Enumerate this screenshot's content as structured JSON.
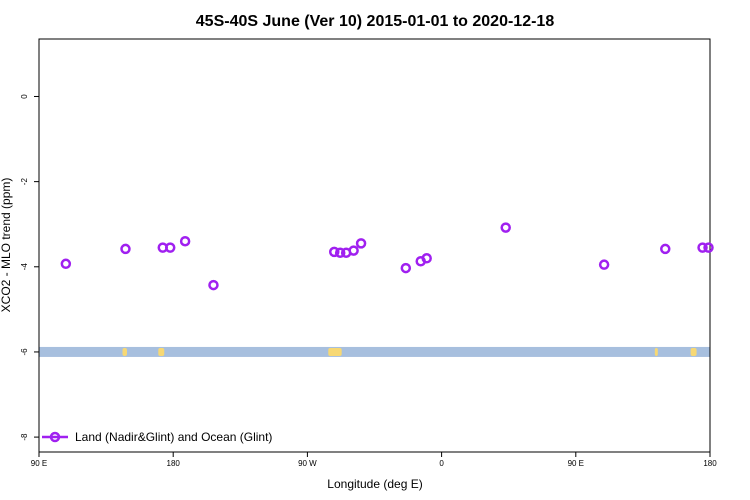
{
  "chart_data": {
    "type": "scatter",
    "title": "45S-40S June (Ver 10)   2015-01-01 to 2020-12-18",
    "xlabel": "Longitude (deg E)",
    "ylabel": "XCO2 - MLO trend (ppm)",
    "xlim": [
      90,
      540
    ],
    "ylim": [
      -8.35,
      1.35
    ],
    "x_ticks": [
      {
        "value": 90,
        "label": "90 E"
      },
      {
        "value": 180,
        "label": "180"
      },
      {
        "value": 270,
        "label": "90 W"
      },
      {
        "value": 360,
        "label": "0"
      },
      {
        "value": 450,
        "label": "90 E"
      },
      {
        "value": 540,
        "label": "180"
      }
    ],
    "y_ticks": [
      {
        "value": 0,
        "label": "0"
      },
      {
        "value": -2,
        "label": "-2"
      },
      {
        "value": -4,
        "label": "-4"
      },
      {
        "value": -6,
        "label": "-6"
      },
      {
        "value": -8,
        "label": "-8"
      }
    ],
    "grid": false,
    "legend_position": "bottom-left",
    "series": [
      {
        "name": "Land (Nadir&Glint) and Ocean (Glint)",
        "color": "#a020f0",
        "marker": "open-circle",
        "points": [
          {
            "x": 108,
            "y": -3.93
          },
          {
            "x": 148,
            "y": -3.58
          },
          {
            "x": 173,
            "y": -3.55
          },
          {
            "x": 178,
            "y": -3.55
          },
          {
            "x": 188,
            "y": -3.4
          },
          {
            "x": 207,
            "y": -4.43
          },
          {
            "x": 288,
            "y": -3.65
          },
          {
            "x": 292,
            "y": -3.67
          },
          {
            "x": 296,
            "y": -3.67
          },
          {
            "x": 301,
            "y": -3.62
          },
          {
            "x": 306,
            "y": -3.45
          },
          {
            "x": 336,
            "y": -4.03
          },
          {
            "x": 346,
            "y": -3.87
          },
          {
            "x": 350,
            "y": -3.8
          },
          {
            "x": 403,
            "y": -3.08
          },
          {
            "x": 469,
            "y": -3.95
          },
          {
            "x": 510,
            "y": -3.58
          },
          {
            "x": 535,
            "y": -3.55
          },
          {
            "x": 539,
            "y": -3.55
          }
        ]
      }
    ],
    "surface_strip": {
      "y": -6,
      "ocean_color": "#a7bfde",
      "land_color": "#f7d874",
      "land_ranges": [
        [
          146,
          149
        ],
        [
          170,
          174
        ],
        [
          284,
          293
        ],
        [
          503,
          505
        ],
        [
          527,
          531
        ]
      ]
    }
  }
}
